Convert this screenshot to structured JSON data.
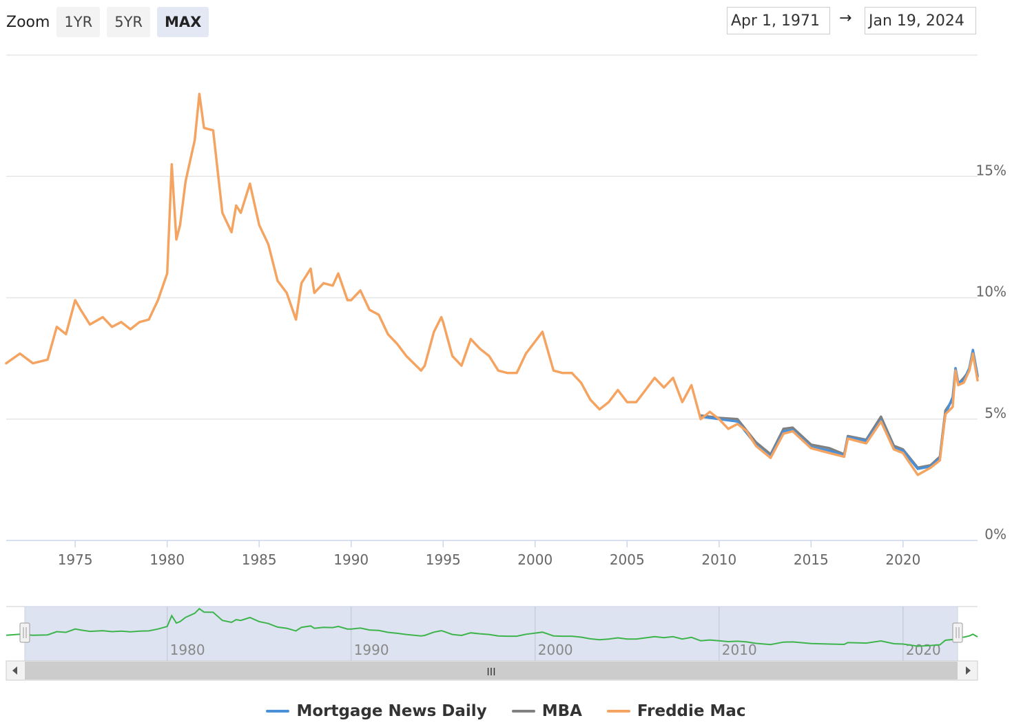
{
  "zoom": {
    "label": "Zoom",
    "buttons": [
      "1YR",
      "5YR",
      "MAX"
    ],
    "active": "MAX"
  },
  "range": {
    "from": "Apr 1, 1971",
    "arrow": "→",
    "to": "Jan 19, 2024"
  },
  "navigator": {
    "labels": [
      "1980",
      "1990",
      "2000",
      "2010",
      "2020"
    ],
    "scroll_handle": "III"
  },
  "chart_data": {
    "type": "line",
    "title": "",
    "xlabel": "",
    "ylabel": "",
    "x_range": [
      1971.25,
      2024.05
    ],
    "ylim": [
      0,
      20
    ],
    "x_ticks": [
      "1975",
      "1980",
      "1985",
      "1990",
      "1995",
      "2000",
      "2005",
      "2010",
      "2015",
      "2020"
    ],
    "y_ticks": [
      "0%",
      "5%",
      "10%",
      "15%"
    ],
    "grid": true,
    "legend_position": "bottom",
    "series": [
      {
        "name": "Mortgage News Daily",
        "color": "#4a90d9",
        "points": [
          [
            2009.0,
            5.1
          ],
          [
            2010.0,
            5.0
          ],
          [
            2011.0,
            4.9
          ],
          [
            2012.0,
            3.95
          ],
          [
            2012.8,
            3.45
          ],
          [
            2013.5,
            4.5
          ],
          [
            2014.0,
            4.55
          ],
          [
            2015.0,
            3.85
          ],
          [
            2016.0,
            3.7
          ],
          [
            2016.8,
            3.5
          ],
          [
            2017.0,
            4.25
          ],
          [
            2018.0,
            4.1
          ],
          [
            2018.8,
            4.95
          ],
          [
            2019.5,
            3.8
          ],
          [
            2020.0,
            3.7
          ],
          [
            2020.8,
            2.95
          ],
          [
            2021.5,
            3.05
          ],
          [
            2022.0,
            3.4
          ],
          [
            2022.3,
            5.2
          ],
          [
            2022.7,
            5.9
          ],
          [
            2022.85,
            7.1
          ],
          [
            2023.0,
            6.5
          ],
          [
            2023.3,
            6.6
          ],
          [
            2023.6,
            7.1
          ],
          [
            2023.8,
            7.85
          ],
          [
            2024.05,
            6.8
          ]
        ]
      },
      {
        "name": "MBA",
        "color": "#808080",
        "points": [
          [
            2009.0,
            5.15
          ],
          [
            2010.0,
            5.05
          ],
          [
            2011.0,
            5.0
          ],
          [
            2012.0,
            4.05
          ],
          [
            2012.8,
            3.55
          ],
          [
            2013.5,
            4.6
          ],
          [
            2014.0,
            4.65
          ],
          [
            2015.0,
            3.95
          ],
          [
            2016.0,
            3.8
          ],
          [
            2016.8,
            3.55
          ],
          [
            2017.0,
            4.3
          ],
          [
            2018.0,
            4.15
          ],
          [
            2018.8,
            5.1
          ],
          [
            2019.5,
            3.9
          ],
          [
            2020.0,
            3.75
          ],
          [
            2020.8,
            3.0
          ],
          [
            2021.5,
            3.1
          ],
          [
            2022.0,
            3.45
          ],
          [
            2022.3,
            5.35
          ],
          [
            2022.7,
            5.8
          ],
          [
            2022.85,
            6.95
          ],
          [
            2023.0,
            6.45
          ],
          [
            2023.3,
            6.7
          ],
          [
            2023.6,
            7.0
          ],
          [
            2023.8,
            7.7
          ],
          [
            2024.05,
            6.75
          ]
        ]
      },
      {
        "name": "Freddie Mac",
        "color": "#f4a460",
        "points": [
          [
            1971.25,
            7.3
          ],
          [
            1972.0,
            7.7
          ],
          [
            1972.7,
            7.3
          ],
          [
            1973.5,
            7.45
          ],
          [
            1974.0,
            8.8
          ],
          [
            1974.5,
            8.5
          ],
          [
            1975.0,
            9.9
          ],
          [
            1975.3,
            9.5
          ],
          [
            1975.8,
            8.9
          ],
          [
            1976.5,
            9.2
          ],
          [
            1977.0,
            8.8
          ],
          [
            1977.5,
            9.0
          ],
          [
            1978.0,
            8.7
          ],
          [
            1978.5,
            9.0
          ],
          [
            1979.0,
            9.1
          ],
          [
            1979.5,
            9.9
          ],
          [
            1980.0,
            11.0
          ],
          [
            1980.25,
            15.5
          ],
          [
            1980.5,
            12.4
          ],
          [
            1980.7,
            13.0
          ],
          [
            1981.0,
            14.8
          ],
          [
            1981.5,
            16.5
          ],
          [
            1981.75,
            18.4
          ],
          [
            1982.0,
            17.0
          ],
          [
            1982.5,
            16.9
          ],
          [
            1983.0,
            13.5
          ],
          [
            1983.5,
            12.7
          ],
          [
            1983.75,
            13.8
          ],
          [
            1984.0,
            13.5
          ],
          [
            1984.5,
            14.7
          ],
          [
            1985.0,
            13.0
          ],
          [
            1985.5,
            12.2
          ],
          [
            1986.0,
            10.7
          ],
          [
            1986.5,
            10.2
          ],
          [
            1987.0,
            9.1
          ],
          [
            1987.3,
            10.6
          ],
          [
            1987.8,
            11.2
          ],
          [
            1988.0,
            10.2
          ],
          [
            1988.5,
            10.6
          ],
          [
            1989.0,
            10.5
          ],
          [
            1989.3,
            11.0
          ],
          [
            1989.8,
            9.9
          ],
          [
            1990.0,
            9.9
          ],
          [
            1990.5,
            10.3
          ],
          [
            1991.0,
            9.5
          ],
          [
            1991.5,
            9.3
          ],
          [
            1992.0,
            8.5
          ],
          [
            1992.5,
            8.1
          ],
          [
            1993.0,
            7.6
          ],
          [
            1993.8,
            7.0
          ],
          [
            1994.0,
            7.2
          ],
          [
            1994.5,
            8.6
          ],
          [
            1994.9,
            9.2
          ],
          [
            1995.0,
            9.0
          ],
          [
            1995.5,
            7.6
          ],
          [
            1996.0,
            7.2
          ],
          [
            1996.5,
            8.3
          ],
          [
            1997.0,
            7.9
          ],
          [
            1997.5,
            7.6
          ],
          [
            1998.0,
            7.0
          ],
          [
            1998.5,
            6.9
          ],
          [
            1999.0,
            6.9
          ],
          [
            1999.5,
            7.7
          ],
          [
            2000.0,
            8.2
          ],
          [
            2000.4,
            8.6
          ],
          [
            2001.0,
            7.0
          ],
          [
            2001.5,
            6.9
          ],
          [
            2002.0,
            6.9
          ],
          [
            2002.5,
            6.5
          ],
          [
            2003.0,
            5.8
          ],
          [
            2003.5,
            5.4
          ],
          [
            2004.0,
            5.7
          ],
          [
            2004.5,
            6.2
          ],
          [
            2005.0,
            5.7
          ],
          [
            2005.5,
            5.7
          ],
          [
            2006.0,
            6.2
          ],
          [
            2006.5,
            6.7
          ],
          [
            2007.0,
            6.3
          ],
          [
            2007.5,
            6.7
          ],
          [
            2008.0,
            5.7
          ],
          [
            2008.5,
            6.4
          ],
          [
            2009.0,
            5.0
          ],
          [
            2009.5,
            5.3
          ],
          [
            2010.0,
            5.0
          ],
          [
            2010.5,
            4.6
          ],
          [
            2011.0,
            4.8
          ],
          [
            2011.5,
            4.5
          ],
          [
            2012.0,
            3.9
          ],
          [
            2012.8,
            3.4
          ],
          [
            2013.5,
            4.4
          ],
          [
            2014.0,
            4.5
          ],
          [
            2015.0,
            3.8
          ],
          [
            2016.0,
            3.6
          ],
          [
            2016.8,
            3.45
          ],
          [
            2017.0,
            4.2
          ],
          [
            2018.0,
            4.0
          ],
          [
            2018.8,
            4.9
          ],
          [
            2019.5,
            3.75
          ],
          [
            2020.0,
            3.6
          ],
          [
            2020.8,
            2.7
          ],
          [
            2021.5,
            3.0
          ],
          [
            2022.0,
            3.3
          ],
          [
            2022.3,
            5.2
          ],
          [
            2022.7,
            5.5
          ],
          [
            2022.85,
            7.0
          ],
          [
            2023.0,
            6.4
          ],
          [
            2023.3,
            6.5
          ],
          [
            2023.6,
            7.0
          ],
          [
            2023.8,
            7.7
          ],
          [
            2024.05,
            6.6
          ]
        ]
      }
    ]
  }
}
